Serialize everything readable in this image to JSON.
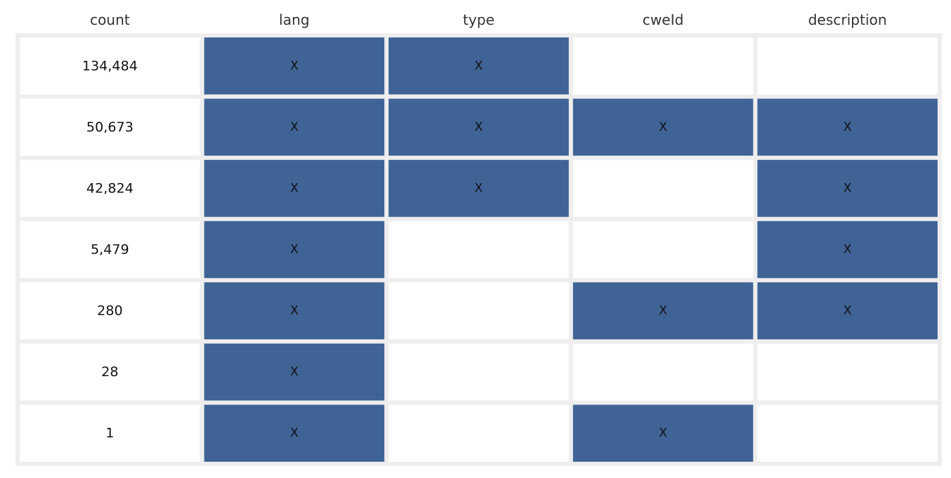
{
  "chart_data": {
    "type": "table",
    "columns": [
      "count",
      "lang",
      "type",
      "cweId",
      "description"
    ],
    "rows": [
      {
        "count": "134,484",
        "lang": "X",
        "type": "X",
        "cweId": "",
        "description": ""
      },
      {
        "count": "50,673",
        "lang": "X",
        "type": "X",
        "cweId": "X",
        "description": "X"
      },
      {
        "count": "42,824",
        "lang": "X",
        "type": "X",
        "cweId": "",
        "description": "X"
      },
      {
        "count": "5,479",
        "lang": "X",
        "type": "",
        "cweId": "",
        "description": "X"
      },
      {
        "count": "280",
        "lang": "X",
        "type": "",
        "cweId": "X",
        "description": "X"
      },
      {
        "count": "28",
        "lang": "X",
        "type": "",
        "cweId": "",
        "description": ""
      },
      {
        "count": "1",
        "lang": "X",
        "type": "",
        "cweId": "X",
        "description": ""
      }
    ],
    "colors": {
      "filled": "#3f6395",
      "empty": "#ffffff",
      "background": "#eeeeee",
      "header_text": "#333333",
      "cell_text": "#111111"
    }
  }
}
